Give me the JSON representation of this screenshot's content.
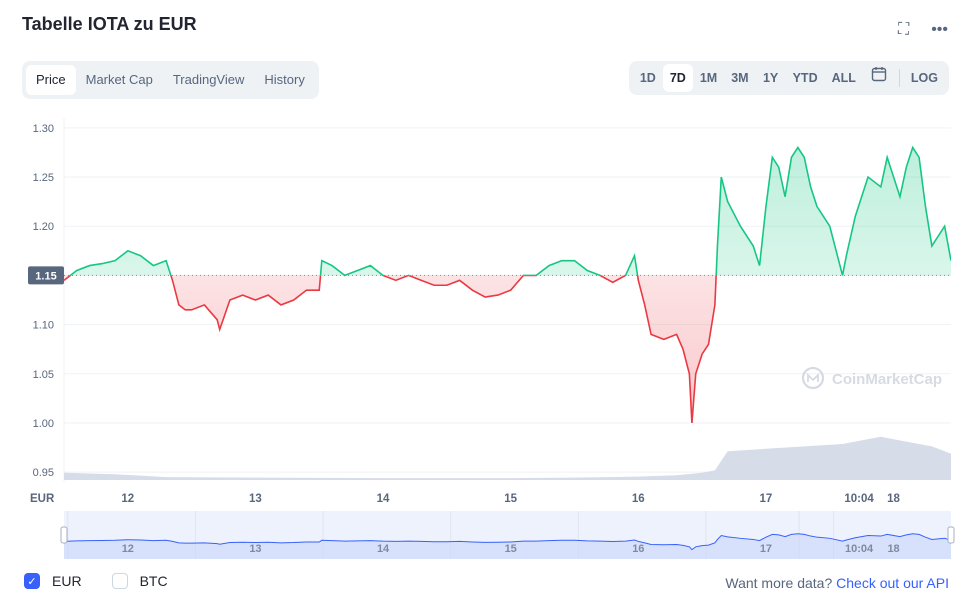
{
  "title": "Tabelle IOTA zu EUR",
  "icons": {
    "fullscreen": "fullscreen-icon",
    "more": "more-icon",
    "calendar": "calendar-icon",
    "watermark": "coinmarketcap-logo-icon"
  },
  "tabs": [
    {
      "label": "Price",
      "active": true
    },
    {
      "label": "Market Cap",
      "active": false
    },
    {
      "label": "TradingView",
      "active": false
    },
    {
      "label": "History",
      "active": false
    }
  ],
  "ranges": [
    {
      "label": "1D",
      "active": false
    },
    {
      "label": "7D",
      "active": true
    },
    {
      "label": "1M",
      "active": false
    },
    {
      "label": "3M",
      "active": false
    },
    {
      "label": "1Y",
      "active": false
    },
    {
      "label": "YTD",
      "active": false
    },
    {
      "label": "ALL",
      "active": false
    }
  ],
  "log_label": "LOG",
  "watermark": "CoinMarketCap",
  "colors": {
    "up": "#16c784",
    "down": "#ea3943",
    "volume": "#cfd6e4",
    "navigator": "#3861fb",
    "accent": "#3861fb"
  },
  "chart_data": {
    "type": "line",
    "currency_label": "EUR",
    "baseline": 1.15,
    "baseline_label": "1.15",
    "ylim": [
      0.94,
      1.31
    ],
    "y_ticks": [
      "1.30",
      "1.25",
      "1.20",
      "1.15",
      "1.10",
      "1.05",
      "1.00",
      "0.95"
    ],
    "y_tick_values": [
      1.3,
      1.25,
      1.2,
      1.15,
      1.1,
      1.05,
      1.0,
      0.95
    ],
    "x_range": [
      11.5,
      18.45
    ],
    "x_ticks": [
      "12",
      "13",
      "14",
      "15",
      "16",
      "17",
      "10:04",
      "18"
    ],
    "x_tick_values": [
      12,
      13,
      14,
      15,
      16,
      17,
      17.73,
      18
    ],
    "series": [
      {
        "x": [
          11.5,
          11.6,
          11.7,
          11.8,
          11.9,
          12.0,
          12.1,
          12.2,
          12.3,
          12.35,
          12.4,
          12.45,
          12.5,
          12.6,
          12.7,
          12.72,
          12.8,
          12.9,
          13.0,
          13.1,
          13.2,
          13.3,
          13.4,
          13.5,
          13.52,
          13.6,
          13.7,
          13.8,
          13.9,
          14.0,
          14.1,
          14.2,
          14.3,
          14.4,
          14.5,
          14.6,
          14.7,
          14.8,
          14.9,
          15.0,
          15.1,
          15.2,
          15.3,
          15.4,
          15.5,
          15.6,
          15.7,
          15.8,
          15.9,
          15.97,
          16.0,
          16.05,
          16.1,
          16.2,
          16.3,
          16.35,
          16.4,
          16.42,
          16.45,
          16.5,
          16.55,
          16.6,
          16.62,
          16.65,
          16.7,
          16.8,
          16.9,
          16.95,
          17.0,
          17.05,
          17.1,
          17.15,
          17.2,
          17.25,
          17.3,
          17.35,
          17.4,
          17.5,
          17.6,
          17.63,
          17.7,
          17.8,
          17.9,
          17.95,
          18.0,
          18.05,
          18.1,
          18.15,
          18.2,
          18.25,
          18.3,
          18.4,
          18.45
        ],
        "values": [
          1.145,
          1.155,
          1.16,
          1.162,
          1.165,
          1.175,
          1.17,
          1.16,
          1.165,
          1.145,
          1.12,
          1.115,
          1.115,
          1.12,
          1.105,
          1.095,
          1.125,
          1.13,
          1.125,
          1.13,
          1.12,
          1.125,
          1.135,
          1.135,
          1.165,
          1.16,
          1.15,
          1.155,
          1.16,
          1.15,
          1.145,
          1.15,
          1.145,
          1.14,
          1.14,
          1.145,
          1.135,
          1.128,
          1.13,
          1.135,
          1.15,
          1.15,
          1.16,
          1.165,
          1.165,
          1.155,
          1.15,
          1.143,
          1.15,
          1.17,
          1.145,
          1.12,
          1.09,
          1.085,
          1.09,
          1.075,
          1.05,
          1.0,
          1.05,
          1.07,
          1.08,
          1.12,
          1.18,
          1.25,
          1.225,
          1.2,
          1.18,
          1.16,
          1.22,
          1.27,
          1.26,
          1.23,
          1.27,
          1.28,
          1.27,
          1.24,
          1.22,
          1.2,
          1.15,
          1.17,
          1.21,
          1.25,
          1.24,
          1.27,
          1.25,
          1.23,
          1.26,
          1.28,
          1.27,
          1.22,
          1.18,
          1.2,
          1.165
        ]
      }
    ],
    "volume": {
      "x": [
        11.5,
        11.9,
        12.3,
        13.0,
        14.0,
        15.0,
        15.5,
        16.0,
        16.3,
        16.5,
        16.6,
        16.7,
        17.0,
        17.3,
        17.6,
        17.9,
        18.1,
        18.3,
        18.45
      ],
      "values": [
        0.15,
        0.12,
        0.06,
        0.05,
        0.04,
        0.04,
        0.05,
        0.07,
        0.1,
        0.15,
        0.2,
        0.6,
        0.65,
        0.7,
        0.75,
        0.9,
        0.8,
        0.7,
        0.55
      ]
    }
  },
  "footer": {
    "options": [
      {
        "label": "EUR",
        "checked": true
      },
      {
        "label": "BTC",
        "checked": false
      }
    ],
    "prompt": "Want more data?",
    "link": "Check out our API"
  }
}
